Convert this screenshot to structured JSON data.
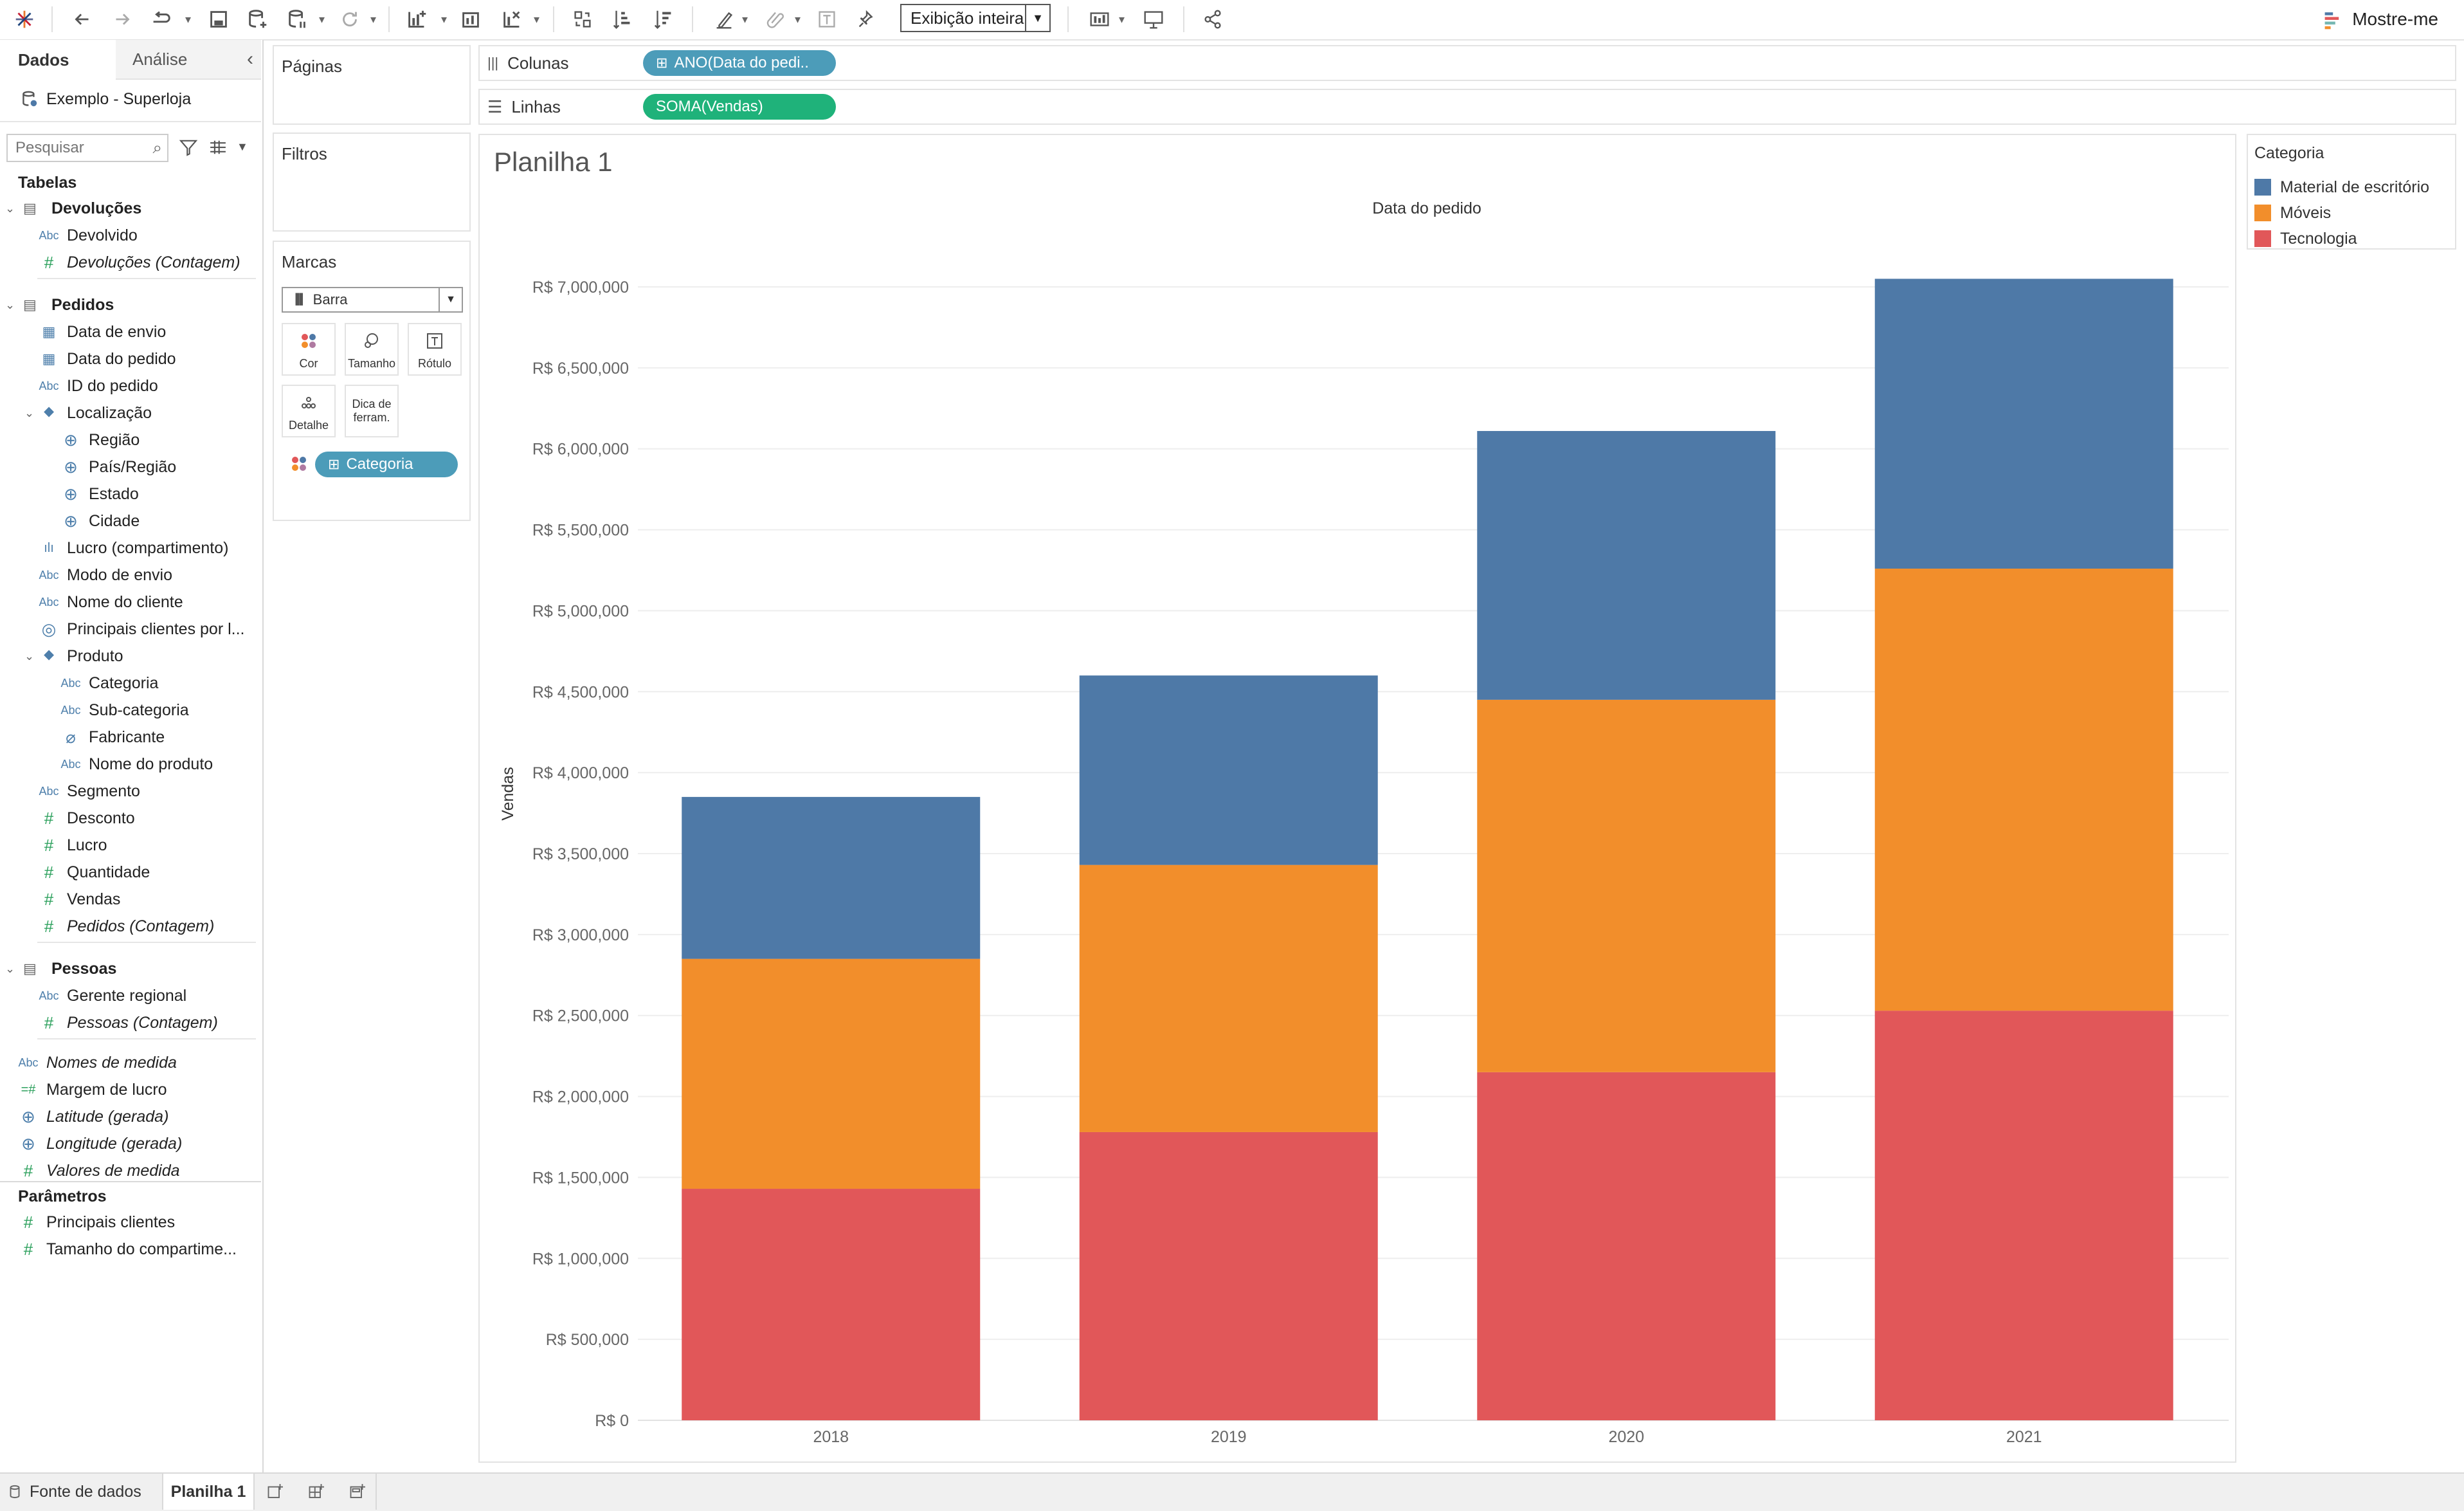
{
  "toolbar": {
    "view_select": "Exibição inteira",
    "show_me": "Mostre-me"
  },
  "datapane": {
    "tab_data": "Dados",
    "tab_analysis": "Análise",
    "datasource": "Exemplo - Superloja",
    "search_placeholder": "Pesquisar",
    "tables_header": "Tabelas",
    "rows": [
      {
        "kind": "table",
        "label": "Devoluções"
      },
      {
        "kind": "dim",
        "icon": "Abc",
        "label": "Devolvido"
      },
      {
        "kind": "measure",
        "icon": "#",
        "label": "Devoluções (Contagem)",
        "italic": true
      },
      {
        "kind": "table",
        "label": "Pedidos"
      },
      {
        "kind": "dim",
        "icon": "cal",
        "label": "Data de envio"
      },
      {
        "kind": "dim",
        "icon": "cal",
        "label": "Data do pedido"
      },
      {
        "kind": "dim",
        "icon": "Abc",
        "label": "ID do pedido"
      },
      {
        "kind": "hier",
        "icon": "hier",
        "label": "Localização"
      },
      {
        "kind": "geo",
        "icon": "globe",
        "label": "Região"
      },
      {
        "kind": "geo",
        "icon": "globe",
        "label": "País/Região"
      },
      {
        "kind": "geo",
        "icon": "globe",
        "label": "Estado"
      },
      {
        "kind": "geo",
        "icon": "globe",
        "label": "Cidade"
      },
      {
        "kind": "dim",
        "icon": "bin",
        "label": "Lucro (compartimento)"
      },
      {
        "kind": "dim",
        "icon": "Abc",
        "label": "Modo de envio"
      },
      {
        "kind": "dim",
        "icon": "Abc",
        "label": "Nome do cliente"
      },
      {
        "kind": "dim",
        "icon": "set",
        "label": "Principais clientes por l..."
      },
      {
        "kind": "hier",
        "icon": "hier",
        "label": "Produto"
      },
      {
        "kind": "sub",
        "icon": "Abc",
        "label": "Categoria"
      },
      {
        "kind": "sub",
        "icon": "Abc",
        "label": "Sub-categoria"
      },
      {
        "kind": "sub",
        "icon": "clip",
        "label": "Fabricante"
      },
      {
        "kind": "sub",
        "icon": "Abc",
        "label": "Nome do produto"
      },
      {
        "kind": "dim",
        "icon": "Abc",
        "label": "Segmento"
      },
      {
        "kind": "measure",
        "icon": "#",
        "label": "Desconto"
      },
      {
        "kind": "measure",
        "icon": "#",
        "label": "Lucro"
      },
      {
        "kind": "measure",
        "icon": "#",
        "label": "Quantidade"
      },
      {
        "kind": "measure",
        "icon": "#",
        "label": "Vendas"
      },
      {
        "kind": "measure",
        "icon": "#",
        "label": "Pedidos (Contagem)",
        "italic": true
      },
      {
        "kind": "table",
        "label": "Pessoas"
      },
      {
        "kind": "dim",
        "icon": "Abc",
        "label": "Gerente regional"
      },
      {
        "kind": "measure",
        "icon": "#",
        "label": "Pessoas (Contagem)",
        "italic": true
      },
      {
        "kind": "top",
        "icon": "Abc",
        "label": "Nomes de medida",
        "italic": true
      },
      {
        "kind": "top",
        "icon": "=#",
        "label": "Margem de lucro"
      },
      {
        "kind": "top",
        "icon": "globe",
        "label": "Latitude (gerada)",
        "italic": true
      },
      {
        "kind": "top",
        "icon": "globe",
        "label": "Longitude (gerada)",
        "italic": true
      },
      {
        "kind": "top",
        "icon": "#",
        "label": "Valores de medida",
        "italic": true
      }
    ],
    "params_header": "Parâmetros",
    "params": [
      {
        "icon": "#",
        "label": "Principais clientes"
      },
      {
        "icon": "#",
        "label": "Tamanho do compartime..."
      }
    ]
  },
  "cards": {
    "pages": "Páginas",
    "filters": "Filtros",
    "marks": "Marcas",
    "mark_type": "Barra",
    "mark_buttons": [
      "Cor",
      "Tamanho",
      "Rótulo",
      "Detalhe",
      "Dica de ferram."
    ],
    "color_pill": "Categoria"
  },
  "shelves": {
    "columns_label": "Colunas",
    "columns_pill": "ANO(Data do pedi..",
    "rows_label": "Linhas",
    "rows_pill": "SOMA(Vendas)"
  },
  "sheet": {
    "title": "Planilha 1"
  },
  "legend": {
    "title": "Categoria",
    "items": [
      {
        "label": "Material de escritório",
        "color": "#4e79a7"
      },
      {
        "label": "Móveis",
        "color": "#f28e2b"
      },
      {
        "label": "Tecnologia",
        "color": "#e15759"
      }
    ]
  },
  "bottom": {
    "datasource_tab": "Fonte de dados",
    "sheet_tab": "Planilha 1"
  },
  "chart_data": {
    "type": "bar",
    "stacked": true,
    "title": "Data do pedido",
    "xlabel": "",
    "ylabel": "Vendas",
    "categories": [
      "2018",
      "2019",
      "2020",
      "2021"
    ],
    "series": [
      {
        "name": "Tecnologia",
        "color": "#e15759",
        "values": [
          1430000,
          1780000,
          2150000,
          2530000
        ]
      },
      {
        "name": "Móveis",
        "color": "#f28e2b",
        "values": [
          1420000,
          1650000,
          2300000,
          2730000
        ]
      },
      {
        "name": "Material de escritório",
        "color": "#4e79a7",
        "values": [
          1000000,
          1170000,
          1660000,
          1790000
        ]
      }
    ],
    "ylim": [
      0,
      7000000
    ],
    "yticks": [
      {
        "v": 0,
        "label": "R$ 0"
      },
      {
        "v": 500000,
        "label": "R$ 500,000"
      },
      {
        "v": 1000000,
        "label": "R$ 1,000,000"
      },
      {
        "v": 1500000,
        "label": "R$ 1,500,000"
      },
      {
        "v": 2000000,
        "label": "R$ 2,000,000"
      },
      {
        "v": 2500000,
        "label": "R$ 2,500,000"
      },
      {
        "v": 3000000,
        "label": "R$ 3,000,000"
      },
      {
        "v": 3500000,
        "label": "R$ 3,500,000"
      },
      {
        "v": 4000000,
        "label": "R$ 4,000,000"
      },
      {
        "v": 4500000,
        "label": "R$ 4,500,000"
      },
      {
        "v": 5000000,
        "label": "R$ 5,000,000"
      },
      {
        "v": 5500000,
        "label": "R$ 5,500,000"
      },
      {
        "v": 6000000,
        "label": "R$ 6,000,000"
      },
      {
        "v": 6500000,
        "label": "R$ 6,500,000"
      },
      {
        "v": 7000000,
        "label": "R$ 7,000,000"
      }
    ],
    "grid": true,
    "legend": "right"
  }
}
